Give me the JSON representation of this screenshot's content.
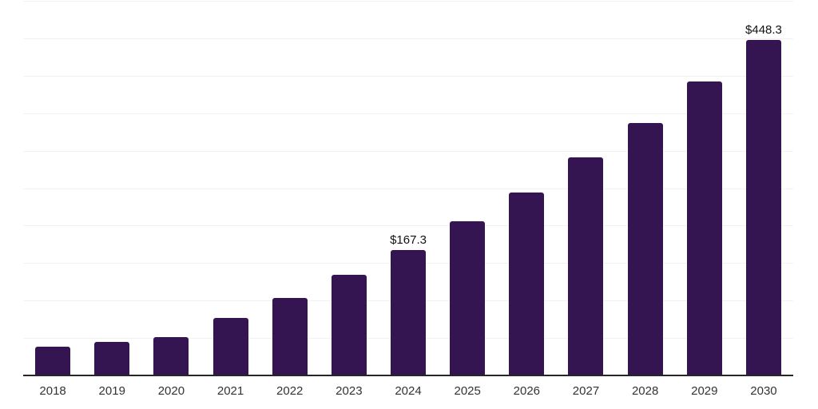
{
  "chart_data": {
    "type": "bar",
    "title": "",
    "xlabel": "",
    "ylabel": "",
    "categories": [
      "2018",
      "2019",
      "2020",
      "2021",
      "2022",
      "2023",
      "2024",
      "2025",
      "2026",
      "2027",
      "2028",
      "2029",
      "2030"
    ],
    "values": [
      38.0,
      45.1,
      51.5,
      76.4,
      103.4,
      134.0,
      167.3,
      205.4,
      244.5,
      291.5,
      337.2,
      392.0,
      448.3
    ],
    "data_labels": {
      "2024": "$167.3",
      "2030": "$448.3"
    },
    "ylim": [
      0,
      500
    ],
    "grid_interval": 50,
    "grid": "horizontal",
    "legend": "none",
    "y_tick_labels_shown": false,
    "colors": {
      "bar": "#351452",
      "axis_line": "#262626",
      "gridline": "#f2f2f2",
      "x_tick_label": "#333333",
      "data_label": "#111111",
      "background": "#ffffff"
    }
  }
}
